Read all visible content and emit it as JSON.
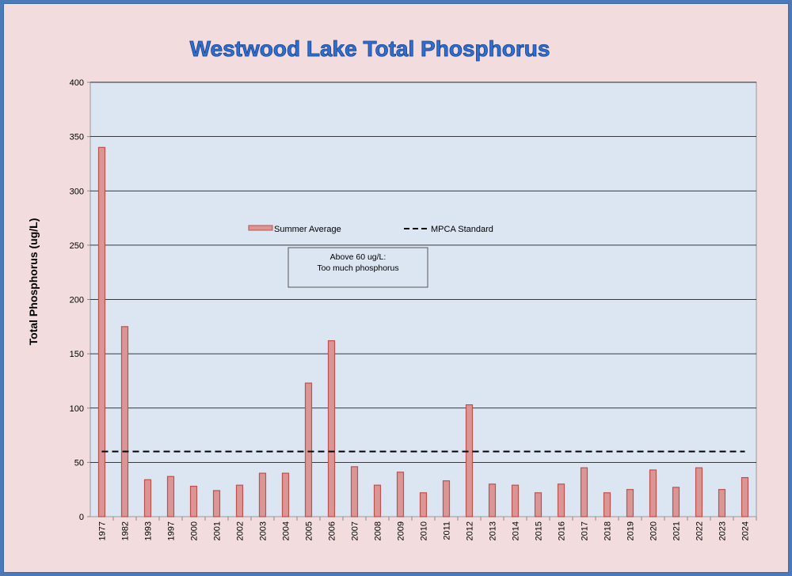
{
  "chart_data": {
    "type": "bar",
    "title": "Westwood Lake Total Phosphorus",
    "xlabel": "",
    "ylabel": "Total Phosphorus (ug/L)",
    "ylim": [
      0,
      400
    ],
    "yticks": [
      0,
      50,
      100,
      150,
      200,
      250,
      300,
      350,
      400
    ],
    "grid": true,
    "legend_position": "top-center",
    "categories": [
      "1977",
      "1982",
      "1993",
      "1997",
      "2000",
      "2001",
      "2002",
      "2003",
      "2004",
      "2005",
      "2006",
      "2007",
      "2008",
      "2009",
      "2010",
      "2011",
      "2012",
      "2013",
      "2014",
      "2015",
      "2016",
      "2017",
      "2018",
      "2019",
      "2020",
      "2021",
      "2022",
      "2023",
      "2024"
    ],
    "series": [
      {
        "name": "Summer Average",
        "type": "bar",
        "color": "#d99694",
        "edge_color": "#c0504d",
        "values": [
          340,
          175,
          34,
          37,
          28,
          24,
          29,
          40,
          40,
          123,
          162,
          46,
          29,
          41,
          22,
          33,
          103,
          30,
          29,
          22,
          30,
          45,
          22,
          25,
          43,
          27,
          45,
          25,
          36
        ]
      },
      {
        "name": "MPCA Standard",
        "type": "line",
        "style": "dashed",
        "color": "#000000",
        "value": 60
      }
    ],
    "annotation": {
      "line1": "Above 60 ug/L:",
      "line2": "Too much phosphorus"
    }
  },
  "colors": {
    "background": "#f3dcdd",
    "plot_area": "#dce6f2",
    "border": "#4a7ab8",
    "title": "#2f6fd0"
  }
}
